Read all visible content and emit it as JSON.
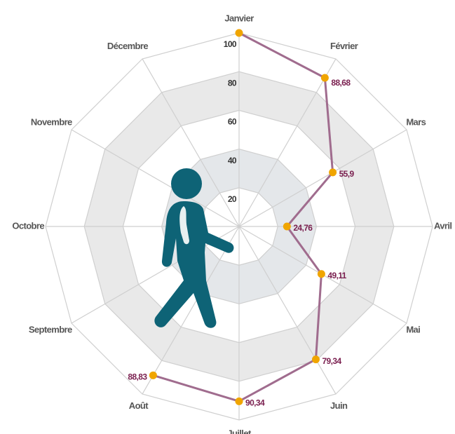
{
  "chart_data": {
    "type": "radar",
    "categories": [
      "Janvier",
      "Février",
      "Mars",
      "Avril",
      "Mai",
      "Juin",
      "Juillet",
      "Août",
      "Septembre",
      "Octobre",
      "Novembre",
      "Décembre"
    ],
    "values": [
      100,
      88.68,
      55.9,
      24.76,
      49.11,
      79.34,
      90.34,
      88.83,
      null,
      null,
      null,
      null
    ],
    "value_labels": [
      null,
      "88,68",
      "55,9",
      "24,76",
      "49,11",
      "79,34",
      "90,34",
      "88,83",
      null,
      null,
      null,
      null
    ],
    "rlim": [
      0,
      100
    ],
    "rticks": [
      20,
      40,
      60,
      80,
      100
    ],
    "line_color": "#a06c8e",
    "marker_color": "#f0a500",
    "grid": true
  }
}
